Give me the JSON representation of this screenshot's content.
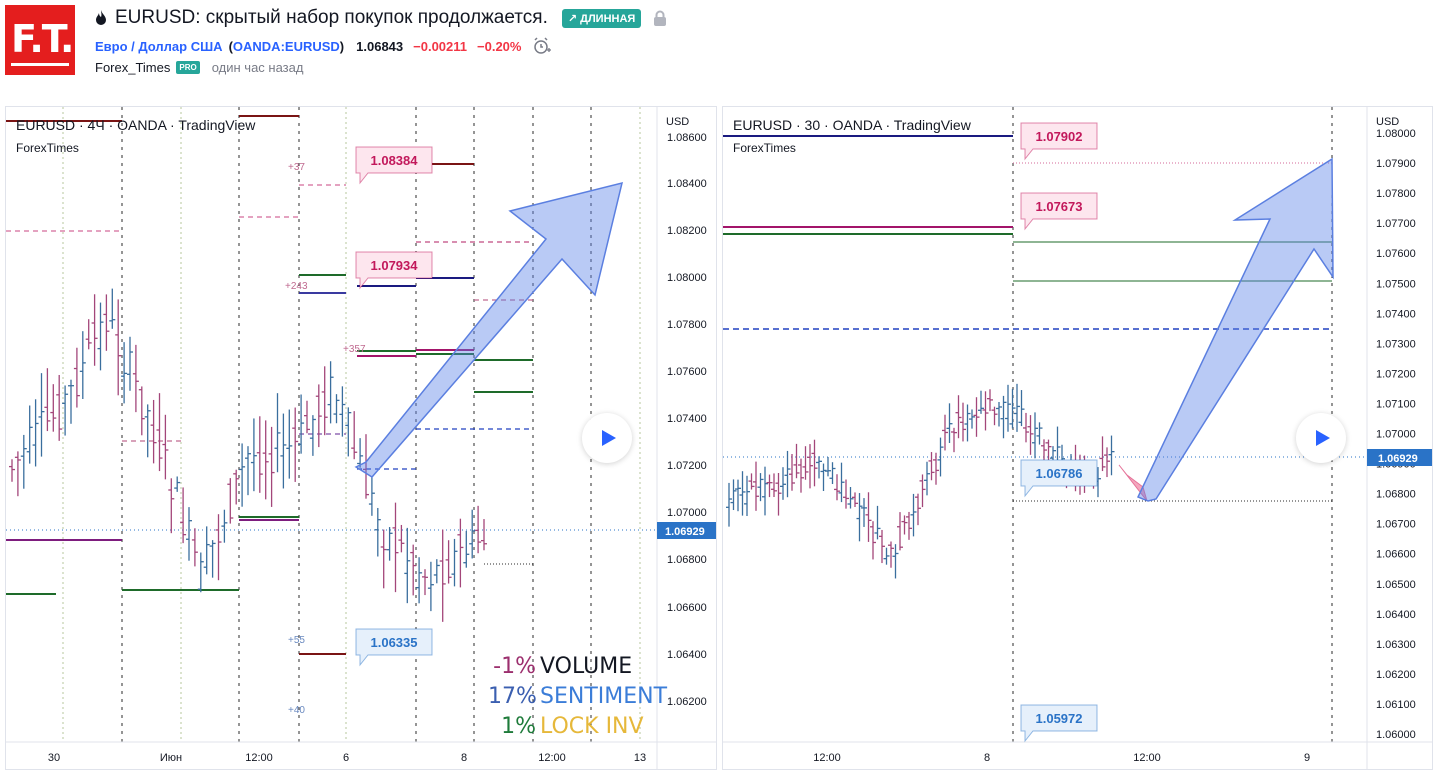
{
  "header": {
    "logo_text": "F.T.",
    "title": "EURUSD: скрытый набор покупок продолжается.",
    "badge": "↗ ДЛИННАЯ",
    "symbol_name": "Евро / Доллар США",
    "symbol_paren_open": "(",
    "symbol_ticker": "OANDA:EURUSD",
    "symbol_paren_close": ")",
    "price": "1.06843",
    "change": "−0.00211",
    "change_pct": "−0.20%",
    "author": "Forex_Times",
    "author_badge": "PRO",
    "time_ago": "один час назад"
  },
  "left_chart": {
    "title": "EURUSD · 4Ч · OANDA · TradingView",
    "subtitle": "ForexTimes",
    "currency": "USD",
    "price_ticks": [
      "1.08600",
      "1.08400",
      "1.08200",
      "1.08000",
      "1.07800",
      "1.07600",
      "1.07400",
      "1.07200",
      "1.07000",
      "1.06800",
      "1.06600",
      "1.06400",
      "1.06200"
    ],
    "current_price": "1.06929",
    "time_ticks": [
      "30",
      "Июн",
      "12:00",
      "6",
      "8",
      "12:00",
      "13"
    ],
    "callouts": [
      "1.08384",
      "1.07934",
      "1.06335"
    ],
    "small_labels": [
      "+37",
      "+243",
      "+357",
      "+55",
      "+40"
    ],
    "legend": [
      {
        "pct": "-1%",
        "label": "VOLUME",
        "pct_color": "#9c2f6e",
        "label_color": "#131722"
      },
      {
        "pct": "17%",
        "label": "SENTIMENT",
        "pct_color": "#3b5fb0",
        "label_color": "#3b7dd8"
      },
      {
        "pct": "1%",
        "label": "LOCK INV",
        "pct_color": "#1e7b3a",
        "label_color": "#e6b83a"
      }
    ]
  },
  "right_chart": {
    "title": "EURUSD · 30 · OANDA · TradingView",
    "subtitle": "ForexTimes",
    "currency": "USD",
    "price_ticks": [
      "1.08000",
      "1.07900",
      "1.07800",
      "1.07700",
      "1.07600",
      "1.07500",
      "1.07400",
      "1.07300",
      "1.07200",
      "1.07100",
      "1.07000",
      "1.06900",
      "1.06800",
      "1.06700",
      "1.06600",
      "1.06500",
      "1.06400",
      "1.06300",
      "1.06200",
      "1.06100",
      "1.06000"
    ],
    "current_price": "1.06929",
    "time_ticks": [
      "12:00",
      "8",
      "12:00",
      "9"
    ],
    "callouts": [
      "1.07902",
      "1.07673",
      "1.06786",
      "1.05972"
    ]
  },
  "colors": {
    "accent_blue": "#2962ff",
    "up_candle": "#3a6e9e",
    "down_candle": "#a3467a",
    "price_label_bg": "#2a73c7",
    "long_badge": "#26a69a",
    "change_red": "#f23645"
  }
}
